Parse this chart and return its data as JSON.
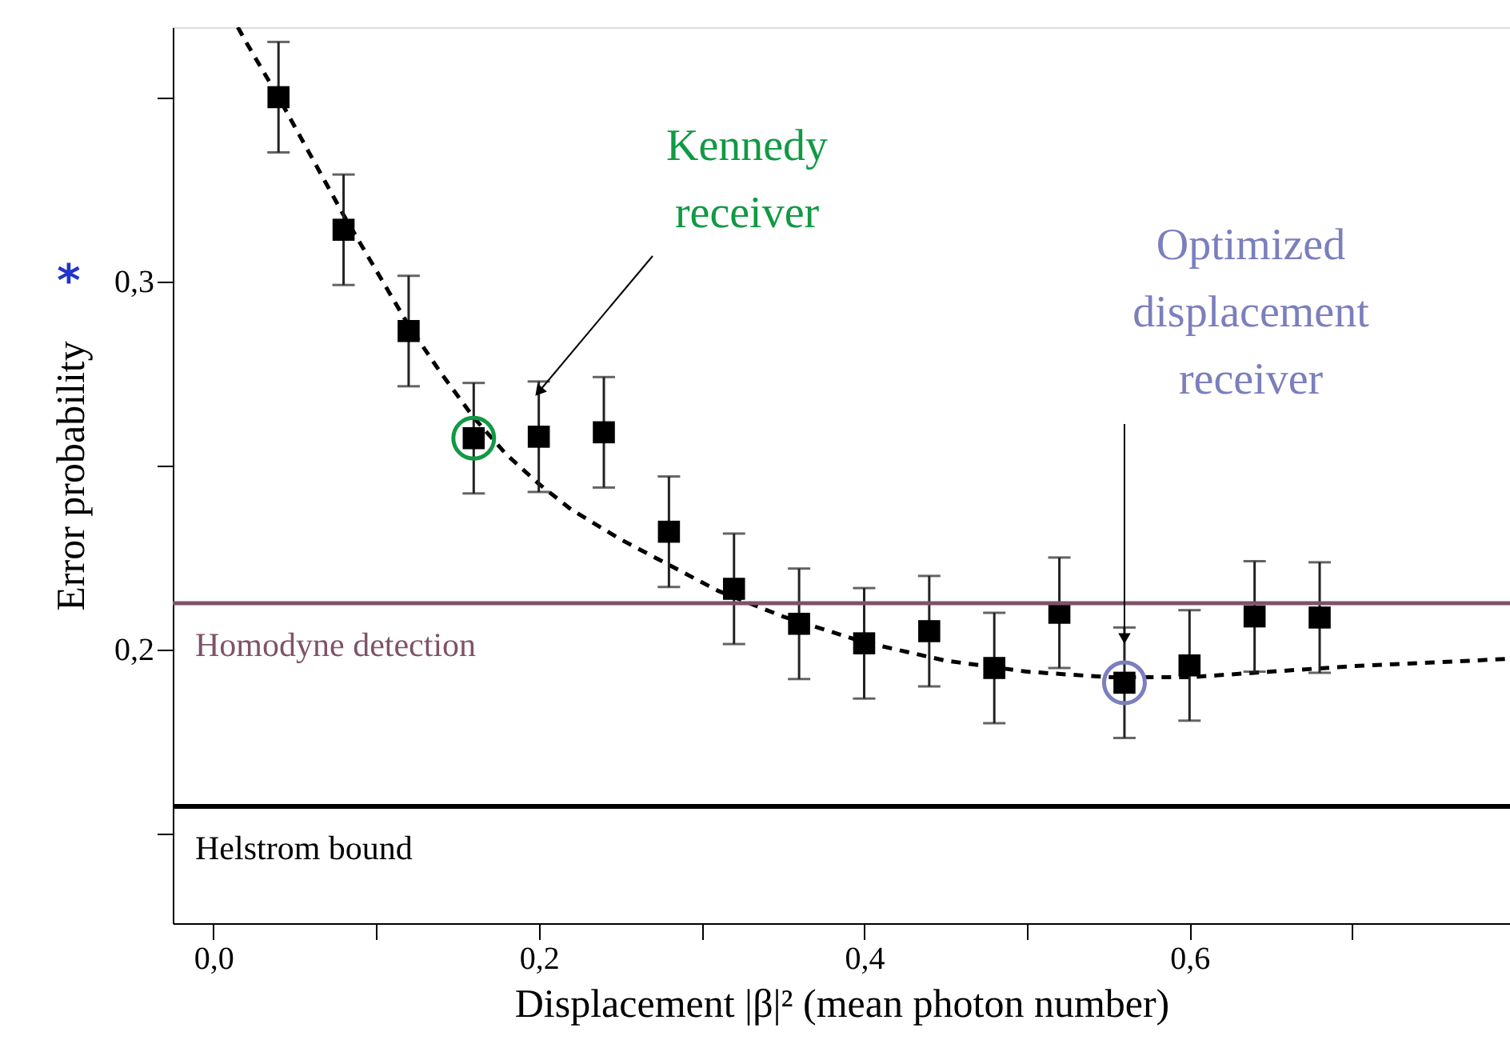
{
  "chart_data": {
    "type": "scatter",
    "xlabel": "Displacement |β|² (mean photon number)",
    "ylabel": "Error probability",
    "xlim": [
      -0.025,
      0.797
    ],
    "ylim": [
      0.1257,
      0.369
    ],
    "xticks": [
      {
        "value": 0,
        "label": "0,0"
      },
      {
        "value": 0.1,
        "label": null
      },
      {
        "value": 0.2,
        "label": "0,2"
      },
      {
        "value": 0.3,
        "label": null
      },
      {
        "value": 0.4,
        "label": "0,4"
      },
      {
        "value": 0.5,
        "label": null
      },
      {
        "value": 0.6,
        "label": "0,6"
      },
      {
        "value": 0.7,
        "label": null
      }
    ],
    "yticks": [
      {
        "value": 0.15,
        "label": null
      },
      {
        "value": 0.2,
        "label": "0,2"
      },
      {
        "value": 0.25,
        "label": null
      },
      {
        "value": 0.3,
        "label": "0,3"
      },
      {
        "value": 0.35,
        "label": null
      }
    ],
    "grid": false,
    "series": [
      {
        "type": "line",
        "color": "#000000",
        "line_style": "dashed",
        "marker": "none",
        "x": [
          0.015,
          0.02,
          0.04,
          0.06,
          0.08,
          0.1,
          0.12,
          0.14,
          0.16,
          0.18,
          0.2,
          0.22,
          0.25,
          0.28,
          0.31,
          0.35,
          0.4,
          0.45,
          0.5,
          0.55,
          0.6,
          0.65,
          0.7,
          0.75,
          0.797
        ],
        "values": [
          0.369,
          0.365,
          0.35,
          0.334,
          0.318,
          0.303,
          0.288,
          0.275,
          0.263,
          0.253,
          0.245,
          0.238,
          0.23,
          0.223,
          0.216,
          0.209,
          0.202,
          0.197,
          0.194,
          0.1925,
          0.1925,
          0.194,
          0.1955,
          0.1965,
          0.1975
        ]
      },
      {
        "color": "#000000",
        "marker": "square",
        "x": [
          0.04,
          0.08,
          0.12,
          0.16,
          0.2,
          0.24,
          0.28,
          0.32,
          0.36,
          0.4,
          0.44,
          0.48,
          0.52,
          0.56,
          0.6,
          0.64,
          0.68
        ],
        "values": [
          0.35,
          0.314,
          0.2865,
          0.2574,
          0.2578,
          0.259,
          0.232,
          0.2165,
          0.207,
          0.2017,
          0.205,
          0.195,
          0.21,
          0.191,
          0.1957,
          0.209,
          0.2087
        ],
        "errors": [
          0.015,
          0.015,
          0.015,
          0.015,
          0.015,
          0.015,
          0.015,
          0.015,
          0.015,
          0.015,
          0.015,
          0.015,
          0.015,
          0.015,
          0.015,
          0.015,
          0.015
        ]
      },
      {
        "colors": [
          "#119944",
          "#7b7fbd"
        ],
        "marker": "circle",
        "x": [
          0.16,
          0.56
        ],
        "values": [
          0.2574,
          0.191
        ]
      }
    ],
    "ref_lines": [
      {
        "axis": "y",
        "value": 0.2126,
        "label": "Homodyne detection",
        "color": "#7f5268"
      },
      {
        "axis": "y",
        "value": 0.1574,
        "label": "Helstrom bound",
        "color": "#000000"
      }
    ],
    "annotations": [
      {
        "text": "Kennedy receiver",
        "x": 0.2,
        "y": 0.27
      },
      {
        "text": "Optimized displacement receiver",
        "x": 0.56,
        "y": 0.203
      },
      "*"
    ]
  }
}
